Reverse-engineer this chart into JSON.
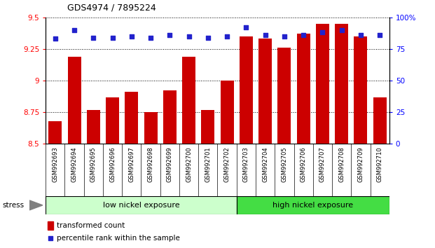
{
  "title": "GDS4974 / 7895224",
  "samples": [
    "GSM992693",
    "GSM992694",
    "GSM992695",
    "GSM992696",
    "GSM992697",
    "GSM992698",
    "GSM992699",
    "GSM992700",
    "GSM992701",
    "GSM992702",
    "GSM992703",
    "GSM992704",
    "GSM992705",
    "GSM992706",
    "GSM992707",
    "GSM992708",
    "GSM992709",
    "GSM992710"
  ],
  "bar_values": [
    8.68,
    9.19,
    8.77,
    8.87,
    8.91,
    8.75,
    8.92,
    9.19,
    8.77,
    9.0,
    9.35,
    9.33,
    9.26,
    9.37,
    9.45,
    9.45,
    9.35,
    8.87
  ],
  "dot_values": [
    83,
    90,
    84,
    84,
    85,
    84,
    86,
    85,
    84,
    85,
    92,
    86,
    85,
    86,
    88,
    90,
    86,
    86
  ],
  "bar_color": "#cc0000",
  "dot_color": "#2222cc",
  "ylim_left": [
    8.5,
    9.5
  ],
  "ylim_right": [
    0,
    100
  ],
  "yticks_left": [
    8.5,
    8.75,
    9.0,
    9.25,
    9.5
  ],
  "ytick_labels_left": [
    "8.5",
    "8.75",
    "9",
    "9.25",
    "9.5"
  ],
  "yticks_right": [
    0,
    25,
    50,
    75,
    100
  ],
  "ytick_labels_right": [
    "0",
    "25",
    "50",
    "75",
    "100%"
  ],
  "group1_label": "low nickel exposure",
  "group2_label": "high nickel exposure",
  "group1_count": 10,
  "stress_label": "stress",
  "legend_bar_label": "transformed count",
  "legend_dot_label": "percentile rank within the sample",
  "group1_color": "#ccffcc",
  "group2_color": "#44dd44",
  "tick_bg_color": "#d8d8d8",
  "plot_bg_color": "#ffffff",
  "fig_bg_color": "#ffffff"
}
